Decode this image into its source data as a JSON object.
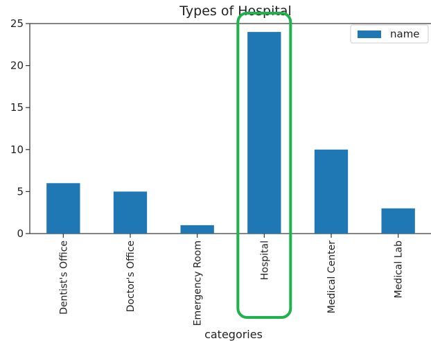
{
  "chart_data": {
    "type": "bar",
    "title": "Types of Hospital",
    "xlabel": "categories",
    "ylabel": "",
    "categories": [
      "Dentist's Office",
      "Doctor's Office",
      "Emergency Room",
      "Hospital",
      "Medical Center",
      "Medical Lab"
    ],
    "series": [
      {
        "name": "name",
        "values": [
          6,
          5,
          1,
          24,
          10,
          3
        ]
      }
    ],
    "ylim": [
      0,
      25
    ],
    "yticks": [
      0,
      5,
      10,
      15,
      20,
      25
    ],
    "grid": false,
    "legend_position": "top-right",
    "bar_color": "#1f77b4",
    "highlight": {
      "category": "Hospital",
      "color": "#1db34a",
      "shape": "rounded-rectangle"
    }
  }
}
